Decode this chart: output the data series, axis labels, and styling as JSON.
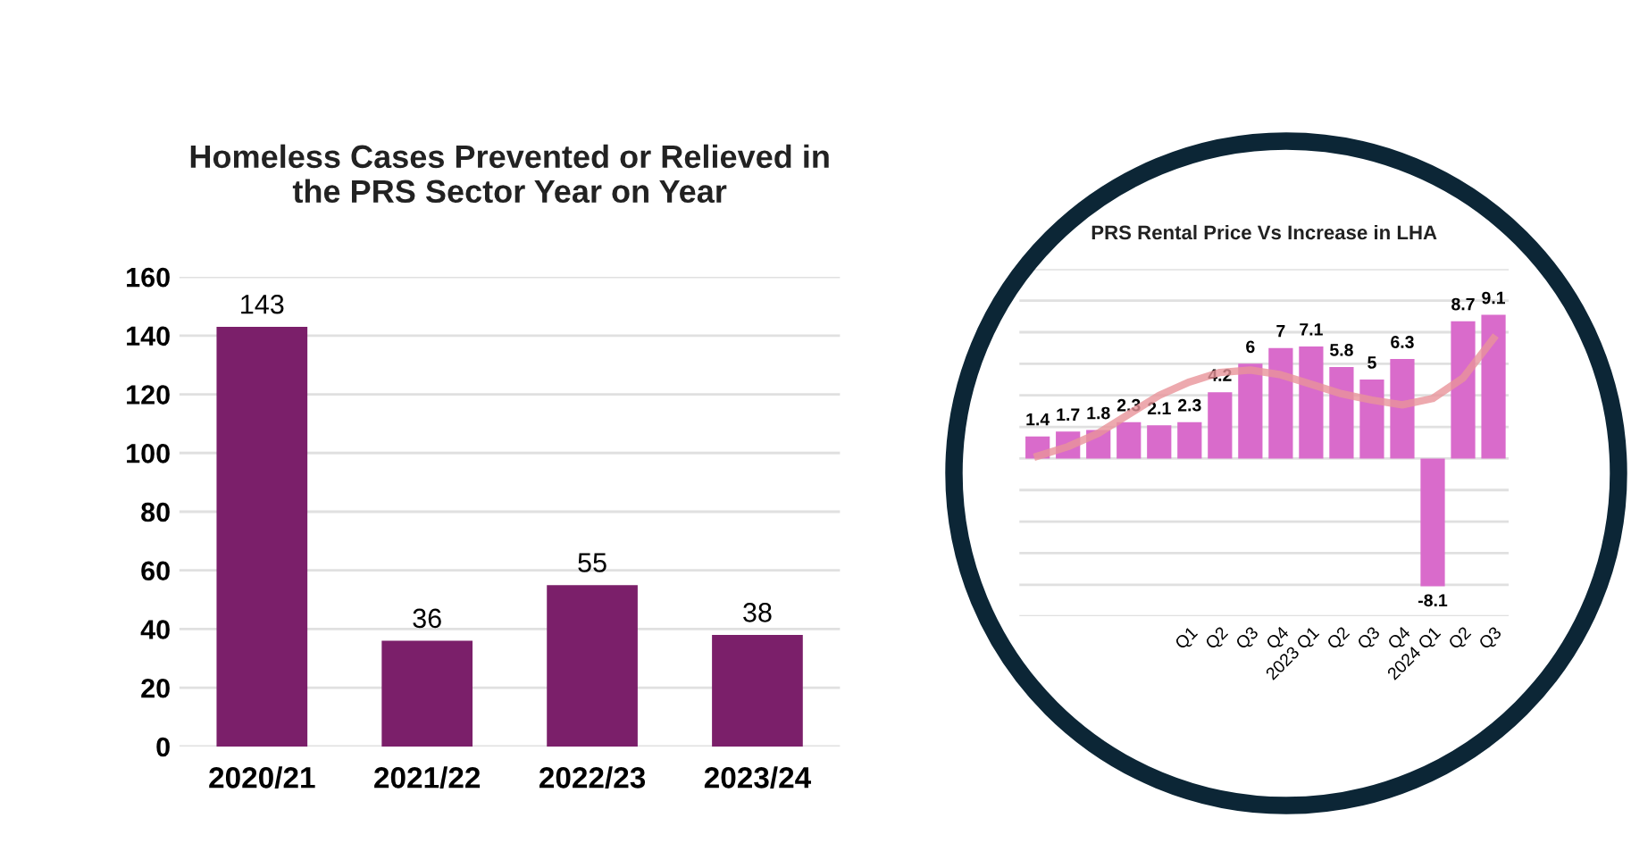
{
  "chart_data": [
    {
      "type": "bar",
      "title": "Homeless Cases Prevented or Relieved in\nthe PRS Sector Year on Year",
      "categories": [
        "2020/21",
        "2021/22",
        "2022/23",
        "2023/24"
      ],
      "values": [
        143,
        36,
        55,
        38
      ],
      "color": "#7b1f6a",
      "ylim": [
        0,
        160
      ],
      "yticks": [
        0,
        20,
        40,
        60,
        80,
        100,
        120,
        140,
        160
      ],
      "grid": "y",
      "data_labels": true
    },
    {
      "type": "bar",
      "title": "PRS Rental Price Vs Increase in LHA",
      "categories": [
        null,
        null,
        null,
        null,
        null,
        "Q1",
        "Q2",
        "Q3",
        "Q4",
        "2023 Q1",
        "Q2",
        "Q3",
        "Q4",
        "2024 Q1",
        "Q2",
        "Q3"
      ],
      "series": [
        {
          "type": "bar",
          "color": "#d96bcb",
          "values": [
            1.4,
            1.7,
            1.8,
            2.3,
            2.1,
            2.3,
            4.2,
            6,
            7,
            7.1,
            5.8,
            5,
            6.3,
            -8.1,
            8.7,
            9.1
          ],
          "value_labels": [
            "1.4",
            "1.7",
            "1.8",
            "2.3",
            "2.1",
            "2.3",
            "4.2",
            "6",
            "7",
            "7.1",
            "5.8",
            "5",
            "6.3",
            "-8.1",
            "8.7",
            "9.1"
          ]
        },
        {
          "type": "line",
          "color": "#e8939a",
          "values": [
            0.15,
            0.75,
            1.6,
            2.8,
            4.0,
            4.85,
            5.45,
            5.6,
            5.3,
            4.7,
            4.1,
            3.7,
            3.4,
            3.8,
            5.1,
            7.6
          ]
        }
      ],
      "ylim": [
        -10,
        12
      ],
      "yticks": [
        {
          "value": -10,
          "label": null
        },
        {
          "value": -8,
          "label": null
        },
        {
          "value": -6,
          "label": null
        },
        {
          "value": -4,
          "label": null
        },
        {
          "value": -2,
          "label": null
        },
        {
          "value": 0,
          "label": null
        },
        {
          "value": 2,
          "label": null
        },
        {
          "value": 4,
          "label": null
        },
        {
          "value": 6,
          "label": null
        },
        {
          "value": 8,
          "label": null
        },
        {
          "value": 10,
          "label": null
        },
        {
          "value": 12,
          "label": null
        }
      ],
      "grid": "y",
      "tick_labels": "x"
    }
  ]
}
